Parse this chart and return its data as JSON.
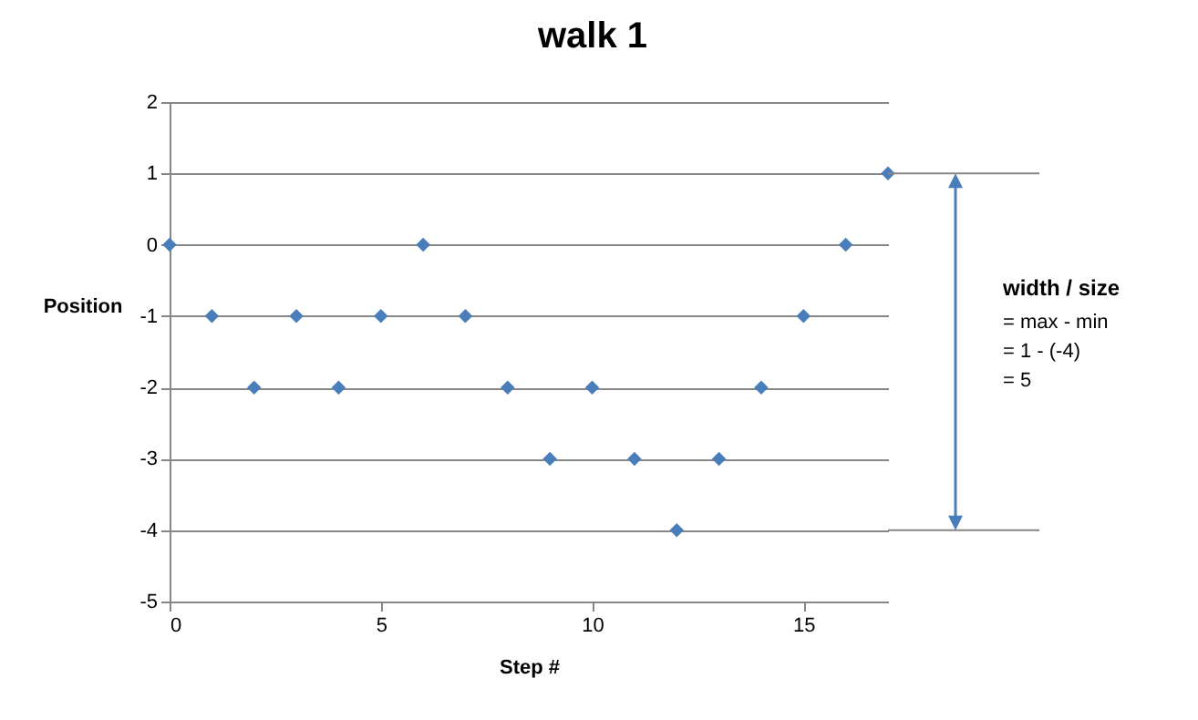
{
  "chart_data": {
    "type": "scatter",
    "title": "walk 1",
    "xlabel": "Step #",
    "ylabel": "Position",
    "x": [
      0,
      1,
      2,
      3,
      4,
      5,
      6,
      7,
      8,
      9,
      10,
      11,
      12,
      13,
      14,
      15,
      16,
      17
    ],
    "series": [
      {
        "color": "#4a7ebb",
        "values": [
          0,
          -1,
          -2,
          -1,
          -2,
          -1,
          0,
          -1,
          -2,
          -3,
          -2,
          -3,
          -4,
          -3,
          -2,
          -1,
          0,
          1
        ]
      }
    ],
    "xlim": [
      0,
      17
    ],
    "xticks": [
      0,
      5,
      10,
      15
    ],
    "ylim": [
      -5,
      2
    ],
    "yticks": [
      -5,
      -4,
      -3,
      -2,
      -1,
      0,
      1,
      2
    ],
    "grid": "y",
    "marker": "diamond",
    "annotations": [
      "width  / size",
      "= max - min",
      "= 1 - (-4)",
      "= 5"
    ]
  }
}
